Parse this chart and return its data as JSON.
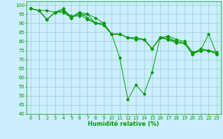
{
  "background_color": "#cceeff",
  "grid_color": "#99cccc",
  "line_color": "#009900",
  "xlabel": "Humidité relative (%)",
  "xlabel_fontsize": 6.0,
  "ylim": [
    40,
    102
  ],
  "xlim": [
    -0.5,
    23.5
  ],
  "yticks": [
    40,
    45,
    50,
    55,
    60,
    65,
    70,
    75,
    80,
    85,
    90,
    95,
    100
  ],
  "xticks": [
    0,
    1,
    2,
    3,
    4,
    5,
    6,
    7,
    8,
    9,
    10,
    11,
    12,
    13,
    14,
    15,
    16,
    17,
    18,
    19,
    20,
    21,
    22,
    23
  ],
  "tick_fontsize": 5.0,
  "series1": [
    98,
    97,
    97,
    96,
    97,
    94,
    94,
    95,
    90,
    90,
    84,
    71,
    48,
    56,
    51,
    63,
    82,
    83,
    81,
    80,
    74,
    75,
    84,
    73
  ],
  "series2": [
    98,
    97,
    92,
    96,
    98,
    93,
    96,
    95,
    93,
    90,
    84,
    84,
    82,
    82,
    81,
    76,
    82,
    82,
    80,
    79,
    73,
    76,
    75,
    74
  ],
  "series3": [
    98,
    97,
    92,
    96,
    97,
    93,
    96,
    93,
    90,
    89,
    84,
    84,
    82,
    82,
    81,
    76,
    82,
    81,
    80,
    79,
    73,
    75,
    75,
    73
  ],
  "series4": [
    98,
    97,
    92,
    96,
    96,
    93,
    95,
    92,
    90,
    89,
    84,
    84,
    82,
    81,
    81,
    76,
    82,
    81,
    79,
    79,
    73,
    75,
    75,
    73
  ]
}
